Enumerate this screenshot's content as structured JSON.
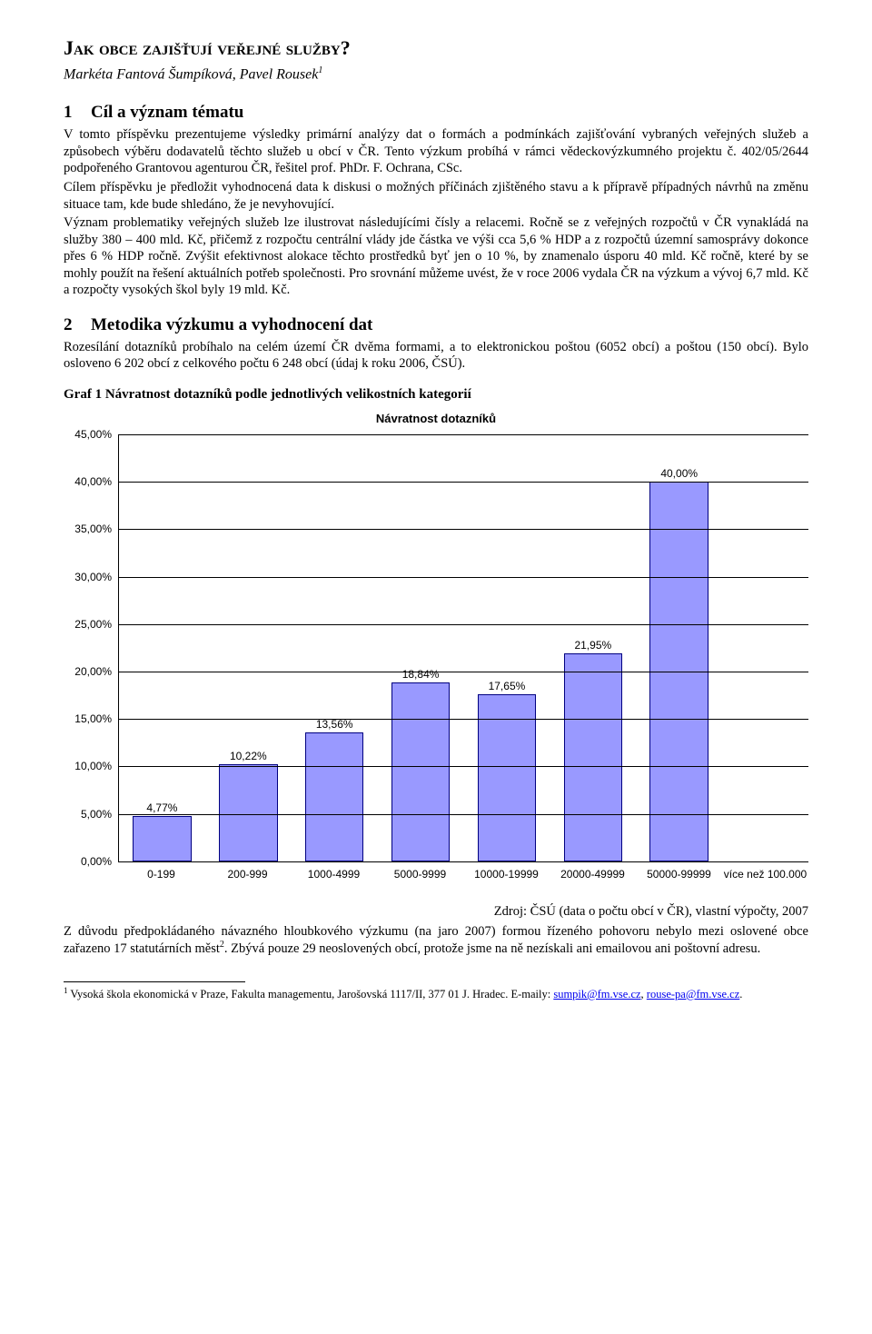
{
  "title": "Jak obce zajišťují veřejné služby?",
  "authors": "Markéta Fantová Šumpíková, Pavel Rousek",
  "authors_sup": "1",
  "section1": {
    "num": "1",
    "heading": "Cíl a význam tématu",
    "p1": "V tomto příspěvku prezentujeme výsledky primární analýzy dat o formách a podmínkách zajišťování vybraných veřejných služeb a způsobech výběru dodavatelů těchto služeb u obcí v ČR. Tento výzkum probíhá v rámci vědeckovýzkumného projektu č. 402/05/2644 podpořeného Grantovou agenturou ČR, řešitel prof. PhDr. F. Ochrana, CSc.",
    "p2": "Cílem příspěvku je předložit vyhodnocená data k diskusi o možných příčinách zjištěného stavu a k přípravě případných návrhů na změnu situace tam, kde bude shledáno, že je nevyhovující.",
    "p3": "Význam problematiky veřejných služeb lze ilustrovat následujícími čísly a relacemi. Ročně se z veřejných rozpočtů v ČR vynakládá na služby 380 – 400 mld. Kč, přičemž z rozpočtu centrální vlády jde částka ve výši cca 5,6 % HDP a z rozpočtů územní samosprávy dokonce přes 6 % HDP ročně. Zvýšit efektivnost alokace těchto prostředků byť jen o 10 %, by znamenalo úsporu 40 mld. Kč ročně, které by se mohly použít na řešení aktuálních potřeb společnosti. Pro srovnání můžeme uvést, že v roce 2006 vydala ČR na výzkum a vývoj 6,7 mld. Kč a rozpočty vysokých škol byly 19 mld. Kč."
  },
  "section2": {
    "num": "2",
    "heading": "Metodika výzkumu a vyhodnocení dat",
    "p1": "Rozesílání dotazníků probíhalo na celém území ČR dvěma formami, a to elektronickou poštou (6052 obcí) a poštou (150 obcí). Bylo osloveno 6 202 obcí z celkového počtu 6 248 obcí (údaj k roku 2006, ČSÚ)."
  },
  "graf_caption": "Graf 1 Návratnost dotazníků podle jednotlivých velikostních kategorií",
  "chart": {
    "title": "Návratnost dotazníků",
    "y_max": 45,
    "y_ticks": [
      "0,00%",
      "5,00%",
      "10,00%",
      "15,00%",
      "20,00%",
      "25,00%",
      "30,00%",
      "35,00%",
      "40,00%",
      "45,00%"
    ],
    "bar_color": "#9999ff",
    "bar_border": "#000080",
    "bars": [
      {
        "label": "0-199",
        "value": 4.77,
        "value_label": "4,77%"
      },
      {
        "label": "200-999",
        "value": 10.22,
        "value_label": "10,22%"
      },
      {
        "label": "1000-4999",
        "value": 13.56,
        "value_label": "13,56%"
      },
      {
        "label": "5000-9999",
        "value": 18.84,
        "value_label": "18,84%"
      },
      {
        "label": "10000-19999",
        "value": 17.65,
        "value_label": "17,65%"
      },
      {
        "label": "20000-49999",
        "value": 21.95,
        "value_label": "21,95%"
      },
      {
        "label": "50000-99999",
        "value": 40.0,
        "value_label": "40,00%"
      },
      {
        "label": "více než 100.000",
        "value": 0,
        "value_label": ""
      }
    ]
  },
  "source": "Zdroj: ČSÚ (data o počtu obcí v ČR), vlastní výpočty, 2007",
  "post_chart_p": "Z důvodu předpokládaného návazného hloubkového výzkumu (na jaro 2007) formou řízeného pohovoru nebylo mezi oslovené obce zařazeno 17 statutárních měst",
  "post_chart_sup": "2",
  "post_chart_tail": ". Zbývá pouze 29 neoslovených obcí, protože jsme na ně nezískali ani emailovou ani poštovní adresu.",
  "footnote": {
    "sup": "1",
    "text": " Vysoká škola ekonomická v Praze, Fakulta managementu, Jarošovská 1117/II, 377 01 J. Hradec. E-maily: ",
    "link1": "sumpik@fm.vse.cz",
    "sep": ", ",
    "link2": "rouse-pa@fm.vse.cz",
    "tail": "."
  }
}
